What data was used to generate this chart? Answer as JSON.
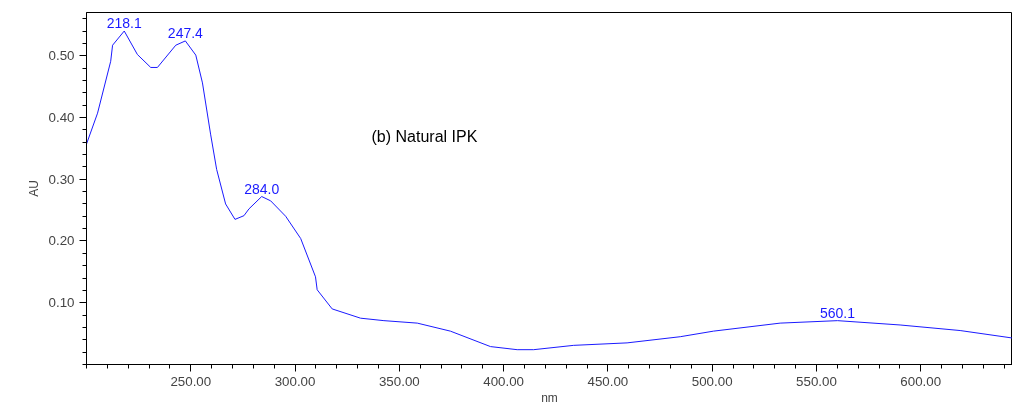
{
  "chart_data": {
    "type": "line",
    "xlabel": "nm",
    "ylabel": "AU",
    "annotations": [
      "(b) Natural IPK",
      {
        "text": "218.1",
        "x": 218.1,
        "y": 0.54
      },
      {
        "text": "247.4",
        "x": 247.4,
        "y": 0.524
      },
      {
        "text": "284.0",
        "x": 284.0,
        "y": 0.272
      },
      {
        "text": "560.1",
        "x": 560.1,
        "y": 0.071
      }
    ],
    "series": [
      {
        "color": "#1a1aff",
        "x": [
          200,
          205.3,
          211.6,
          212.5,
          218.1,
          224.4,
          230.8,
          234,
          242.8,
          247.4,
          252.4,
          255.6,
          259.5,
          262.4,
          266.7,
          271.2,
          275.5,
          277.9,
          284.0,
          288.3,
          295.5,
          302.7,
          309.8,
          310.6,
          317.8,
          331.4,
          342.6,
          358.6,
          374.5,
          393.7,
          406.5,
          414.4,
          433.6,
          459.2,
          484.7,
          500.6,
          532.6,
          560.1,
          590.1,
          618.9,
          643.7
        ],
        "values": [
          0.357,
          0.407,
          0.491,
          0.517,
          0.54,
          0.502,
          0.481,
          0.481,
          0.517,
          0.524,
          0.501,
          0.456,
          0.373,
          0.316,
          0.26,
          0.235,
          0.241,
          0.252,
          0.272,
          0.265,
          0.24,
          0.204,
          0.142,
          0.121,
          0.09,
          0.075,
          0.071,
          0.067,
          0.054,
          0.029,
          0.024,
          0.024,
          0.031,
          0.035,
          0.045,
          0.054,
          0.067,
          0.071,
          0.064,
          0.055,
          0.043
        ]
      }
    ],
    "xlim": [
      200,
      644
    ],
    "ylim": [
      0,
      0.57
    ],
    "xticks": [
      {
        "value": 250,
        "label": "250.00"
      },
      {
        "value": 300,
        "label": "300.00"
      },
      {
        "value": 350,
        "label": "350.00"
      },
      {
        "value": 400,
        "label": "400.00"
      },
      {
        "value": 450,
        "label": "450.00"
      },
      {
        "value": 500,
        "label": "500.00"
      },
      {
        "value": 550,
        "label": "550.00"
      },
      {
        "value": 600,
        "label": "600.00"
      }
    ],
    "yticks": [
      {
        "value": 0.1,
        "label": "0.10"
      },
      {
        "value": 0.2,
        "label": "0.20"
      },
      {
        "value": 0.3,
        "label": "0.30"
      },
      {
        "value": 0.4,
        "label": "0.40"
      },
      {
        "value": 0.5,
        "label": "0.50"
      }
    ],
    "grid": false,
    "marker": "none",
    "line_style": "solid"
  }
}
